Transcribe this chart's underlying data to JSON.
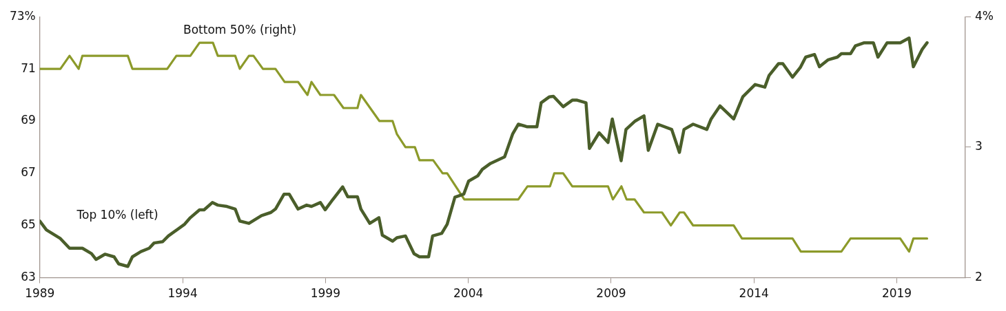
{
  "chart_data": {
    "type": "line",
    "xlim": [
      1989,
      2021.4
    ],
    "xticks": [
      1989,
      1994,
      1999,
      2004,
      2009,
      2014,
      2019
    ],
    "ylim": [
      63,
      73
    ],
    "yticks": [
      63,
      65,
      67,
      69,
      71,
      {
        "value": 73,
        "label": "73%"
      }
    ],
    "y2lim": [
      2,
      4
    ],
    "y2ticks": [
      2,
      3,
      {
        "value": 4,
        "label": "4%"
      }
    ],
    "grid": false,
    "legend": false,
    "marker": "none",
    "line_style": "solid",
    "series": [
      {
        "name": "Top 10% (left)",
        "color": "#4a5e2a",
        "axis": "y",
        "x": [
          1989.0,
          1989.23,
          1989.72,
          1990.04,
          1990.49,
          1990.81,
          1990.97,
          1991.28,
          1991.6,
          1991.76,
          1992.08,
          1992.24,
          1992.54,
          1992.83,
          1993.0,
          1993.3,
          1993.5,
          1994.07,
          1994.27,
          1994.59,
          1994.75,
          1995.04,
          1995.23,
          1995.55,
          1995.84,
          1996.0,
          1996.32,
          1996.76,
          1997.09,
          1997.25,
          1997.55,
          1997.73,
          1998.04,
          1998.34,
          1998.51,
          1998.82,
          1998.99,
          1999.26,
          1999.6,
          1999.78,
          2000.12,
          2000.24,
          2000.55,
          2000.87,
          2000.99,
          2001.35,
          2001.5,
          2001.8,
          2002.1,
          2002.29,
          2002.61,
          2002.75,
          2003.07,
          2003.26,
          2003.53,
          2003.84,
          2004.01,
          2004.33,
          2004.49,
          2004.78,
          2005.27,
          2005.55,
          2005.75,
          2006.07,
          2006.4,
          2006.55,
          2006.84,
          2006.98,
          2007.32,
          2007.64,
          2007.81,
          2008.12,
          2008.24,
          2008.58,
          2008.89,
          2009.04,
          2009.35,
          2009.52,
          2009.84,
          2010.15,
          2010.3,
          2010.63,
          2011.12,
          2011.39,
          2011.55,
          2011.87,
          2012.35,
          2012.5,
          2012.81,
          2013.29,
          2013.61,
          2014.04,
          2014.38,
          2014.53,
          2014.86,
          2015.01,
          2015.35,
          2015.62,
          2015.81,
          2016.12,
          2016.29,
          2016.6,
          2016.92,
          2017.06,
          2017.38,
          2017.55,
          2017.86,
          2018.18,
          2018.34,
          2018.66,
          2019.12,
          2019.43,
          2019.58,
          2019.89,
          2020.06
        ],
        "values": [
          65.17,
          64.83,
          64.5,
          64.13,
          64.13,
          63.92,
          63.7,
          63.9,
          63.8,
          63.53,
          63.43,
          63.8,
          64.0,
          64.13,
          64.33,
          64.38,
          64.6,
          65.05,
          65.3,
          65.6,
          65.6,
          65.88,
          65.78,
          65.73,
          65.63,
          65.17,
          65.08,
          65.38,
          65.5,
          65.63,
          66.2,
          66.2,
          65.63,
          65.78,
          65.73,
          65.88,
          65.6,
          66.0,
          66.48,
          66.1,
          66.1,
          65.63,
          65.08,
          65.3,
          64.63,
          64.4,
          64.53,
          64.6,
          63.92,
          63.8,
          63.8,
          64.6,
          64.7,
          65.05,
          66.08,
          66.2,
          66.7,
          66.9,
          67.15,
          67.38,
          67.63,
          68.5,
          68.88,
          68.78,
          68.78,
          69.7,
          69.93,
          69.95,
          69.55,
          69.8,
          69.8,
          69.7,
          67.95,
          68.55,
          68.18,
          69.08,
          67.48,
          68.68,
          69.0,
          69.2,
          67.88,
          68.88,
          68.68,
          67.8,
          68.68,
          68.88,
          68.68,
          69.08,
          69.58,
          69.08,
          69.93,
          70.4,
          70.3,
          70.75,
          71.2,
          71.2,
          70.68,
          71.05,
          71.45,
          71.55,
          71.08,
          71.35,
          71.45,
          71.58,
          71.58,
          71.88,
          72.0,
          72.0,
          71.45,
          72.0,
          72.0,
          72.18,
          71.08,
          71.75,
          72.0
        ]
      },
      {
        "name": "Bottom 50% (right)",
        "color": "#8c9a2a",
        "axis": "y2",
        "x": [
          1989.0,
          1989.72,
          1990.04,
          1990.36,
          1990.49,
          1992.08,
          1992.24,
          1993.46,
          1993.78,
          1994.27,
          1994.59,
          1995.06,
          1995.23,
          1995.84,
          1996.0,
          1996.32,
          1996.48,
          1996.81,
          1997.25,
          1997.57,
          1998.04,
          1998.37,
          1998.51,
          1998.82,
          1999.3,
          1999.63,
          2000.12,
          2000.24,
          2000.89,
          2001.35,
          2001.5,
          2001.8,
          2002.13,
          2002.29,
          2002.77,
          2003.1,
          2003.26,
          2003.86,
          2005.75,
          2006.07,
          2006.86,
          2007.01,
          2007.32,
          2007.64,
          2008.89,
          2009.06,
          2009.36,
          2009.54,
          2009.82,
          2010.15,
          2010.78,
          2011.09,
          2011.4,
          2011.55,
          2011.87,
          2013.29,
          2013.58,
          2015.35,
          2015.64,
          2017.06,
          2017.38,
          2019.12,
          2019.43,
          2019.58,
          2020.06
        ],
        "values": [
          3.6,
          3.6,
          3.7,
          3.6,
          3.7,
          3.7,
          3.6,
          3.6,
          3.7,
          3.7,
          3.8,
          3.8,
          3.7,
          3.7,
          3.6,
          3.7,
          3.7,
          3.6,
          3.6,
          3.5,
          3.5,
          3.4,
          3.5,
          3.4,
          3.4,
          3.3,
          3.3,
          3.4,
          3.2,
          3.2,
          3.1,
          3.0,
          3.0,
          2.9,
          2.9,
          2.8,
          2.8,
          2.6,
          2.6,
          2.7,
          2.7,
          2.8,
          2.8,
          2.7,
          2.7,
          2.6,
          2.7,
          2.6,
          2.6,
          2.5,
          2.5,
          2.4,
          2.5,
          2.5,
          2.4,
          2.4,
          2.3,
          2.3,
          2.2,
          2.2,
          2.3,
          2.3,
          2.2,
          2.3,
          2.3
        ]
      }
    ]
  }
}
